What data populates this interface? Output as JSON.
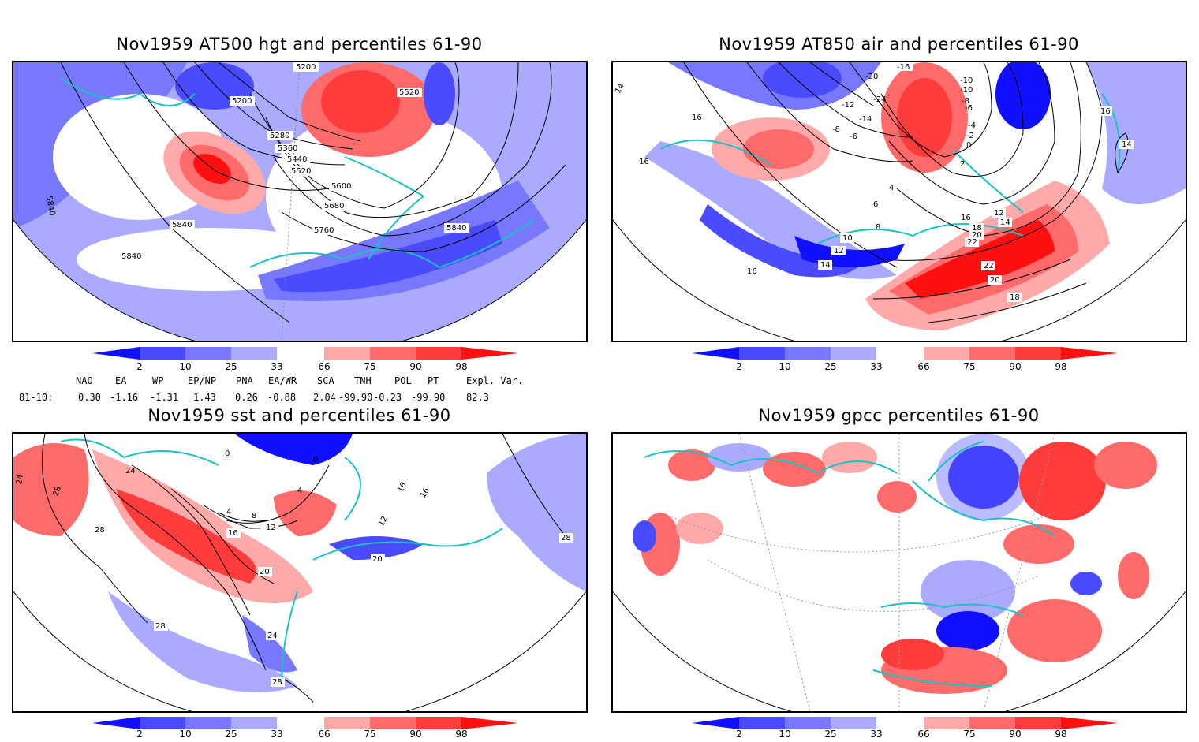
{
  "panels": {
    "hgt": {
      "title": "Nov1959 AT500 hgt and percentiles 61-90",
      "contours": [
        "5200",
        "5200",
        "5520",
        "5280",
        "5360",
        "5440",
        "5520",
        "5600",
        "5680",
        "5760",
        "5840",
        "5840",
        "5840",
        "5840"
      ]
    },
    "air": {
      "title": "Nov1959 AT850 air and percentiles 61-90",
      "contours": [
        "-16",
        "-20",
        "-24",
        "-12",
        "-10",
        "-14",
        "-8",
        "-6",
        "-10",
        "-8",
        "-6",
        "-4",
        "-2",
        "0",
        "2",
        "4",
        "6",
        "8",
        "10",
        "12",
        "14",
        "16",
        "16",
        "16",
        "14",
        "12",
        "14",
        "16",
        "18",
        "20",
        "22",
        "22",
        "20",
        "18",
        "14",
        "16"
      ]
    },
    "sst": {
      "title": "Nov1959 sst and percentiles 61-90",
      "contours": [
        "24",
        "28",
        "24",
        "28",
        "0",
        "0",
        "4",
        "4",
        "8",
        "12",
        "16",
        "20",
        "24",
        "28",
        "28",
        "20",
        "12",
        "16",
        "16",
        "28"
      ]
    },
    "gpcc": {
      "title": "Nov1959 gpcc percentiles 61-90"
    }
  },
  "colorbar": {
    "ticks": [
      "2",
      "10",
      "25",
      "33",
      "66",
      "75",
      "90",
      "98"
    ],
    "colors": [
      "#1010ff",
      "#4a4aff",
      "#7878ff",
      "#aaaaff",
      "#ffffff",
      "#ffaaaa",
      "#ff6b6b",
      "#ff3c3c",
      "#ff1010"
    ]
  },
  "teleconnections": {
    "headers": [
      "NAO",
      "EA",
      "WP",
      "EP/NP",
      "PNA",
      "EA/WR",
      "SCA",
      "TNH",
      "POL",
      "PT",
      "Expl. Var."
    ],
    "row_label": "81-10:",
    "values": [
      "0.30",
      "-1.16",
      "-1.31",
      "1.43",
      "0.26",
      "-0.88",
      "2.04",
      "-99.90",
      "-0.23",
      "-99.90",
      "82.3"
    ]
  }
}
